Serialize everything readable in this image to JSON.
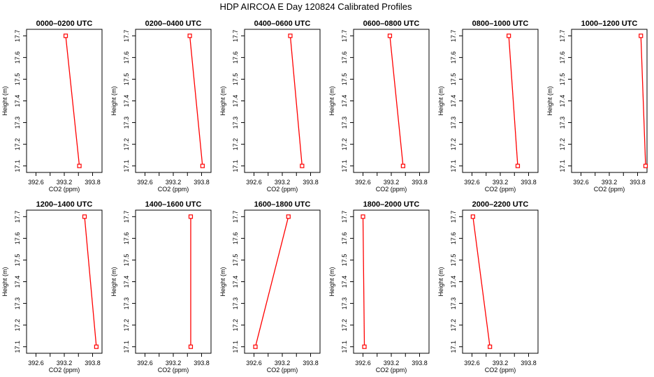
{
  "figure": {
    "title": "HDP AIRCOA E  Day 120824  Calibrated Profiles"
  },
  "chart_data": [
    {
      "type": "line",
      "title": "0000–0200 UTC",
      "xlabel": "CO2 (ppm)",
      "ylabel": "Height (m)",
      "xlim": [
        392.4,
        394.0
      ],
      "ylim": [
        17.07,
        17.73
      ],
      "x_ticks": [
        "392.6",
        "393.2",
        "393.8"
      ],
      "y_ticks": [
        "17.1",
        "17.2",
        "17.3",
        "17.4",
        "17.5",
        "17.6",
        "17.7"
      ],
      "series": [
        {
          "x": [
            393.23,
            393.52
          ],
          "y": [
            17.7,
            17.1
          ]
        }
      ]
    },
    {
      "type": "line",
      "title": "0200–0400 UTC",
      "xlabel": "CO2 (ppm)",
      "ylabel": "Height (m)",
      "xlim": [
        392.4,
        394.0
      ],
      "ylim": [
        17.07,
        17.73
      ],
      "x_ticks": [
        "392.6",
        "393.2",
        "393.8"
      ],
      "y_ticks": [
        "17.1",
        "17.2",
        "17.3",
        "17.4",
        "17.5",
        "17.6",
        "17.7"
      ],
      "series": [
        {
          "x": [
            393.55,
            393.82
          ],
          "y": [
            17.7,
            17.1
          ]
        }
      ]
    },
    {
      "type": "line",
      "title": "0400–0600 UTC",
      "xlabel": "CO2 (ppm)",
      "ylabel": "Height (m)",
      "xlim": [
        392.4,
        394.0
      ],
      "ylim": [
        17.07,
        17.73
      ],
      "x_ticks": [
        "392.6",
        "393.2",
        "393.8"
      ],
      "y_ticks": [
        "17.1",
        "17.2",
        "17.3",
        "17.4",
        "17.5",
        "17.6",
        "17.7"
      ],
      "series": [
        {
          "x": [
            393.37,
            393.62
          ],
          "y": [
            17.7,
            17.1
          ]
        }
      ]
    },
    {
      "type": "line",
      "title": "0600–0800 UTC",
      "xlabel": "CO2 (ppm)",
      "ylabel": "Height (m)",
      "xlim": [
        392.4,
        394.0
      ],
      "ylim": [
        17.07,
        17.73
      ],
      "x_ticks": [
        "392.6",
        "393.2",
        "393.8"
      ],
      "y_ticks": [
        "17.1",
        "17.2",
        "17.3",
        "17.4",
        "17.5",
        "17.6",
        "17.7"
      ],
      "series": [
        {
          "x": [
            393.17,
            393.45
          ],
          "y": [
            17.7,
            17.1
          ]
        }
      ]
    },
    {
      "type": "line",
      "title": "0800–1000 UTC",
      "xlabel": "CO2 (ppm)",
      "ylabel": "Height (m)",
      "xlim": [
        392.4,
        394.0
      ],
      "ylim": [
        17.07,
        17.73
      ],
      "x_ticks": [
        "392.6",
        "393.2",
        "393.8"
      ],
      "y_ticks": [
        "17.1",
        "17.2",
        "17.3",
        "17.4",
        "17.5",
        "17.6",
        "17.7"
      ],
      "series": [
        {
          "x": [
            393.38,
            393.57
          ],
          "y": [
            17.7,
            17.1
          ]
        }
      ]
    },
    {
      "type": "line",
      "title": "1000–1200 UTC",
      "xlabel": "CO2 (ppm)",
      "ylabel": "Height (m)",
      "xlim": [
        392.4,
        394.0
      ],
      "ylim": [
        17.07,
        17.73
      ],
      "x_ticks": [
        "392.6",
        "393.2",
        "393.8"
      ],
      "y_ticks": [
        "17.1",
        "17.2",
        "17.3",
        "17.4",
        "17.5",
        "17.6",
        "17.7"
      ],
      "series": [
        {
          "x": [
            393.87,
            393.97
          ],
          "y": [
            17.7,
            17.1
          ]
        }
      ]
    },
    {
      "type": "line",
      "title": "1200–1400 UTC",
      "xlabel": "CO2 (ppm)",
      "ylabel": "Height (m)",
      "xlim": [
        392.4,
        394.0
      ],
      "ylim": [
        17.07,
        17.73
      ],
      "x_ticks": [
        "392.6",
        "393.2",
        "393.8"
      ],
      "y_ticks": [
        "17.1",
        "17.2",
        "17.3",
        "17.4",
        "17.5",
        "17.6",
        "17.7"
      ],
      "series": [
        {
          "x": [
            393.63,
            393.88
          ],
          "y": [
            17.7,
            17.1
          ]
        }
      ]
    },
    {
      "type": "line",
      "title": "1400–1600 UTC",
      "xlabel": "CO2 (ppm)",
      "ylabel": "Height (m)",
      "xlim": [
        392.4,
        394.0
      ],
      "ylim": [
        17.07,
        17.73
      ],
      "x_ticks": [
        "392.6",
        "393.2",
        "393.8"
      ],
      "y_ticks": [
        "17.1",
        "17.2",
        "17.3",
        "17.4",
        "17.5",
        "17.6",
        "17.7"
      ],
      "series": [
        {
          "x": [
            393.57,
            393.57
          ],
          "y": [
            17.7,
            17.1
          ]
        }
      ]
    },
    {
      "type": "line",
      "title": "1600–1800 UTC",
      "xlabel": "CO2 (ppm)",
      "ylabel": "Height (m)",
      "xlim": [
        392.4,
        394.0
      ],
      "ylim": [
        17.07,
        17.73
      ],
      "x_ticks": [
        "392.6",
        "393.2",
        "393.8"
      ],
      "y_ticks": [
        "17.1",
        "17.2",
        "17.3",
        "17.4",
        "17.5",
        "17.6",
        "17.7"
      ],
      "series": [
        {
          "x": [
            393.33,
            392.63
          ],
          "y": [
            17.7,
            17.1
          ]
        }
      ]
    },
    {
      "type": "line",
      "title": "1800–2000 UTC",
      "xlabel": "CO2 (ppm)",
      "ylabel": "Height (m)",
      "xlim": [
        392.4,
        394.0
      ],
      "ylim": [
        17.07,
        17.73
      ],
      "x_ticks": [
        "392.6",
        "393.2",
        "393.8"
      ],
      "y_ticks": [
        "17.1",
        "17.2",
        "17.3",
        "17.4",
        "17.5",
        "17.6",
        "17.7"
      ],
      "series": [
        {
          "x": [
            392.6,
            392.63
          ],
          "y": [
            17.7,
            17.1
          ]
        }
      ]
    },
    {
      "type": "line",
      "title": "2000–2200 UTC",
      "xlabel": "CO2 (ppm)",
      "ylabel": "Height (m)",
      "xlim": [
        392.4,
        394.0
      ],
      "ylim": [
        17.07,
        17.73
      ],
      "x_ticks": [
        "392.6",
        "393.2",
        "393.8"
      ],
      "y_ticks": [
        "17.1",
        "17.2",
        "17.3",
        "17.4",
        "17.5",
        "17.6",
        "17.7"
      ],
      "series": [
        {
          "x": [
            392.62,
            392.98
          ],
          "y": [
            17.7,
            17.1
          ]
        }
      ]
    }
  ],
  "style": {
    "line_color": "#ff0000",
    "marker_color": "#ff0000",
    "axis_color": "#000000"
  }
}
